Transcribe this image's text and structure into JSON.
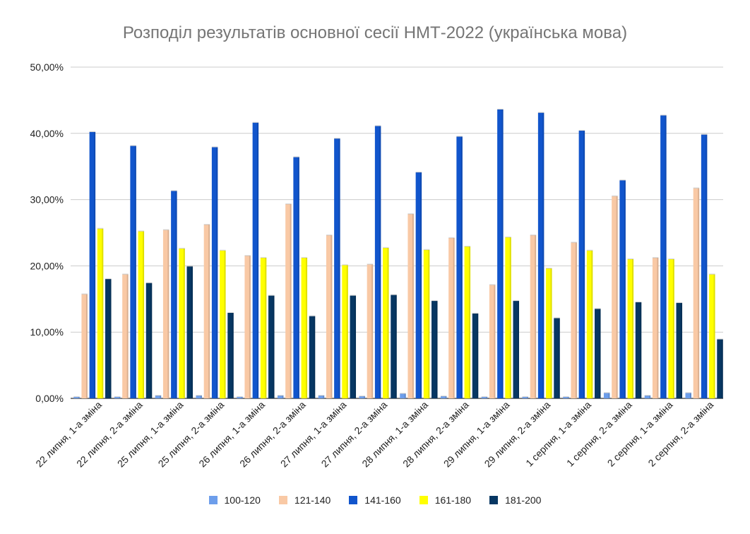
{
  "chart_data": {
    "type": "bar",
    "title": "Розподіл результатів основної сесії НМТ-2022 (українська мова)",
    "xlabel": "",
    "ylabel": "",
    "ylim": [
      0,
      50
    ],
    "yticks": [
      "0,00%",
      "10,00%",
      "20,00%",
      "30,00%",
      "40,00%",
      "50,00%"
    ],
    "ytick_values": [
      0,
      10,
      20,
      30,
      40,
      50
    ],
    "grid": true,
    "legend_position": "bottom",
    "categories": [
      "22 липня, 1-а зміна",
      "22 липня, 2-а зміна",
      "25 липня, 1-а зміна",
      "25 липня, 2-а зміна",
      "26 липня, 1-а зміна",
      "26 липня, 2-а зміна",
      "27 липня, 1-а зміна",
      "27 липня,  2-а зміна",
      "28 липня, 1-а зміна",
      "28 липня, 2-а зміна",
      "29 липня, 1-а зміна",
      "29 липня, 2-а зміна",
      "1 серпня, 1-а зміна",
      "1 серпня, 2-а зміна",
      "2 серпня, 1-а зміна",
      "2 серпня, 2-а зміна"
    ],
    "series": [
      {
        "name": "100-120",
        "color": "#6d9eeb",
        "values": [
          0.2,
          0.2,
          0.4,
          0.4,
          0.2,
          0.4,
          0.4,
          0.3,
          0.7,
          0.3,
          0.2,
          0.2,
          0.2,
          0.8,
          0.4,
          0.8
        ]
      },
      {
        "name": "121-140",
        "color": "#f9c9a5",
        "values": [
          15.7,
          18.7,
          25.4,
          26.2,
          21.5,
          29.3,
          24.6,
          20.2,
          27.8,
          24.2,
          17.1,
          24.6,
          23.5,
          30.5,
          21.2,
          31.7
        ]
      },
      {
        "name": "141-160",
        "color": "#1155cc",
        "values": [
          40.2,
          38.1,
          31.3,
          37.9,
          41.6,
          36.4,
          39.2,
          41.1,
          34.1,
          39.5,
          43.6,
          43.1,
          40.4,
          32.9,
          42.7,
          39.8
        ]
      },
      {
        "name": "161-180",
        "color": "#ffff00",
        "values": [
          25.6,
          25.2,
          22.6,
          22.3,
          21.2,
          21.2,
          20.1,
          22.7,
          22.4,
          22.9,
          24.3,
          19.6,
          22.3,
          21.0,
          21.0,
          18.7
        ]
      },
      {
        "name": "181-200",
        "color": "#073763",
        "values": [
          18.0,
          17.4,
          19.9,
          12.9,
          15.5,
          12.4,
          15.5,
          15.6,
          14.7,
          12.8,
          14.7,
          12.1,
          13.5,
          14.5,
          14.4,
          8.9
        ]
      }
    ]
  }
}
